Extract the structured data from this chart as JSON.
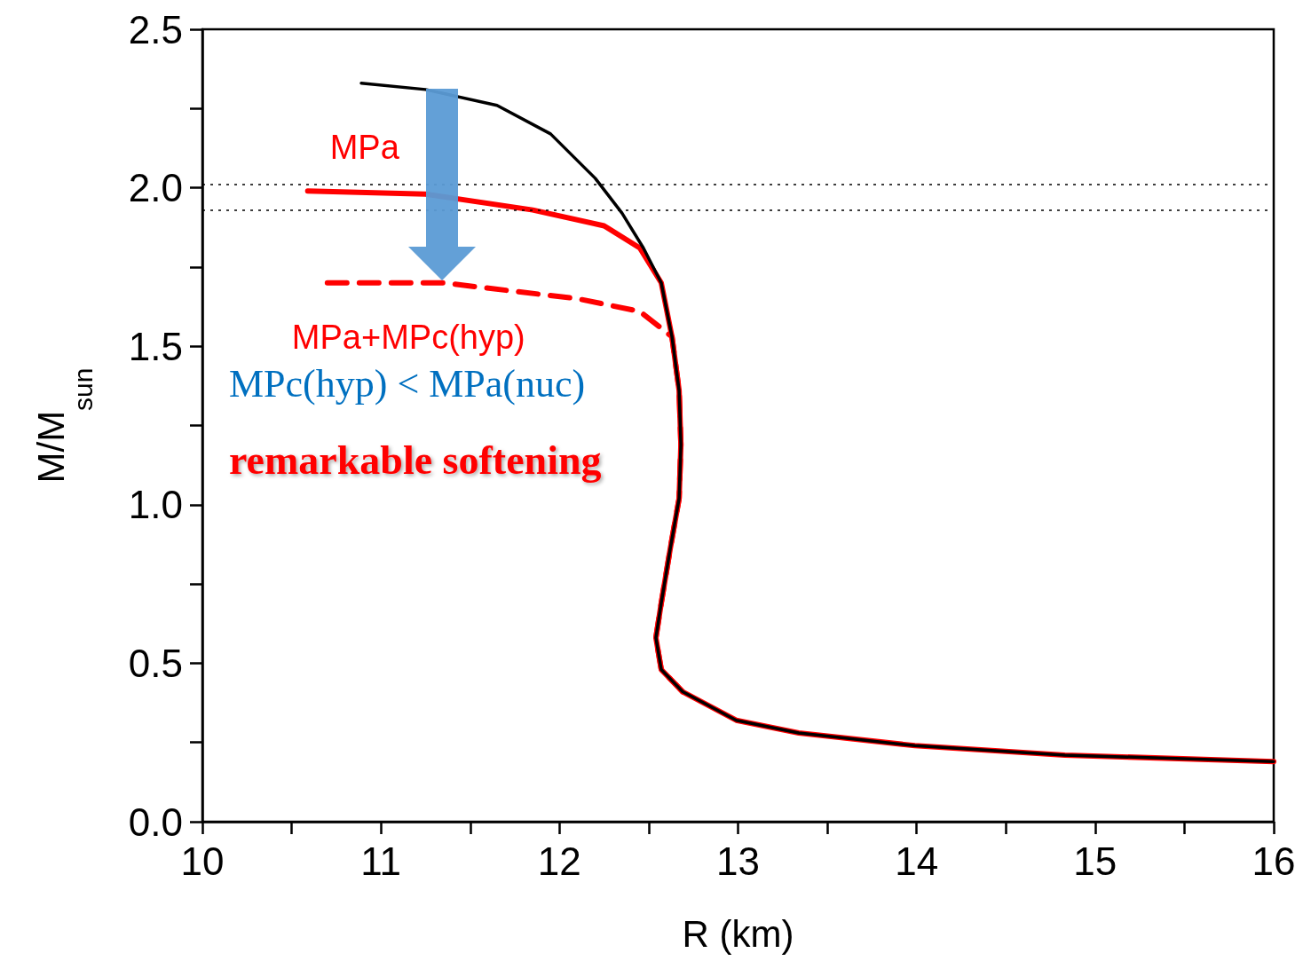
{
  "chart_data": {
    "type": "line",
    "xlabel": "R (km)",
    "ylabel": "M/M$_{sun}$",
    "xlim": [
      10,
      16
    ],
    "xticks": [
      10,
      11,
      12,
      13,
      14,
      15,
      16
    ],
    "ylim": [
      0,
      2.5
    ],
    "yticks": [
      {
        "value": 0,
        "label": "0.0"
      },
      0.5,
      {
        "value": 1,
        "label": "1.0"
      },
      1.5,
      {
        "value": 2,
        "label": "2.0"
      },
      2.5
    ],
    "grid": false,
    "legend": false,
    "marker": "none",
    "series": [
      {
        "color": "#000000",
        "x": [
          10.89,
          11.25,
          11.65,
          11.95,
          12.2,
          12.35,
          12.47,
          12.57,
          12.63,
          12.67,
          12.68,
          12.67,
          12.62,
          12.57,
          12.54,
          12.57,
          12.69,
          12.99,
          13.34,
          13.99,
          14.83,
          16.0
        ],
        "values": [
          2.33,
          2.31,
          2.26,
          2.17,
          2.03,
          1.92,
          1.81,
          1.7,
          1.53,
          1.36,
          1.19,
          1.02,
          0.86,
          0.69,
          0.58,
          0.48,
          0.41,
          0.32,
          0.28,
          0.24,
          0.21,
          0.19
        ]
      },
      {
        "name": "MPa+MPc(hyp)",
        "color": "#ff0000",
        "line_style": "dashed",
        "x": [
          10.7,
          11.35,
          12.1,
          12.45,
          12.63,
          12.67,
          12.68,
          12.67,
          12.62,
          12.57,
          12.54,
          12.57,
          12.69
        ],
        "values": [
          1.7,
          1.7,
          1.65,
          1.61,
          1.53,
          1.36,
          1.19,
          1.02,
          0.86,
          0.69,
          0.58,
          0.48,
          0.41
        ]
      },
      {
        "name": "MPa",
        "color": "#ff0000",
        "x": [
          10.59,
          11.25,
          11.85,
          12.25,
          12.45,
          12.57,
          12.63,
          12.67,
          12.68,
          12.67,
          12.62,
          12.57,
          12.54,
          12.57,
          12.69,
          12.99,
          13.34,
          13.99,
          14.83,
          16.0
        ],
        "values": [
          1.99,
          1.98,
          1.93,
          1.88,
          1.81,
          1.7,
          1.53,
          1.36,
          1.19,
          1.02,
          0.86,
          0.69,
          0.58,
          0.48,
          0.41,
          0.32,
          0.28,
          0.24,
          0.21,
          0.19
        ]
      }
    ],
    "ref_lines": [
      {
        "axis": "y",
        "value": 2.01,
        "color": "#000000",
        "line_style": "dotted"
      },
      {
        "axis": "y",
        "value": 1.93,
        "color": "#000000",
        "line_style": "dotted"
      }
    ],
    "annotations": [
      "MPc(hyp) < MPa(nuc)",
      "remarkable softening"
    ]
  }
}
